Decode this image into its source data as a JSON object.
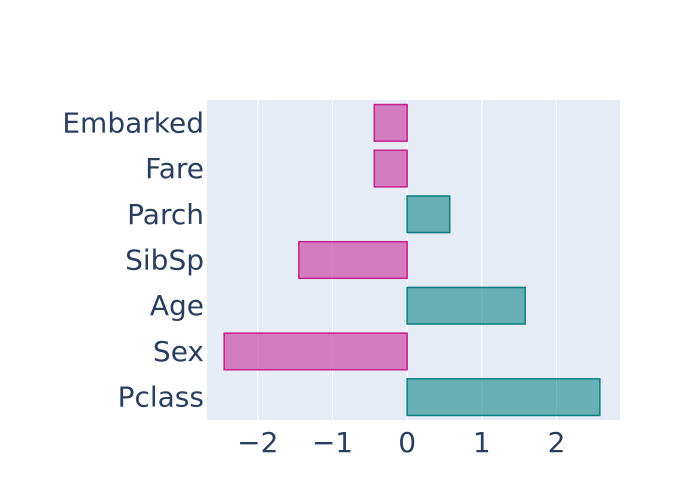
{
  "chart_data": {
    "type": "bar",
    "orientation": "horizontal",
    "categories": [
      "Pclass",
      "Sex",
      "Age",
      "SibSp",
      "Parch",
      "Fare",
      "Embarked"
    ],
    "values": [
      2.58,
      -2.45,
      1.58,
      -1.45,
      0.57,
      -0.44,
      -0.44
    ],
    "xlim": [
      -2.68,
      2.85
    ],
    "xticks": [
      -2,
      -1,
      0,
      1,
      2
    ],
    "xtick_labels": [
      "−2",
      "−1",
      "0",
      "1",
      "2"
    ],
    "grid": true,
    "colors": {
      "positive_fill": "rgba(0,128,128,0.55)",
      "positive_line": "#0a7e7e",
      "negative_fill": "rgba(204,80,170,0.72)",
      "negative_line": "#c61e8e",
      "plot_bg": "#e5ecf6",
      "grid": "#ffffff",
      "text": "#2a3f5f"
    }
  }
}
